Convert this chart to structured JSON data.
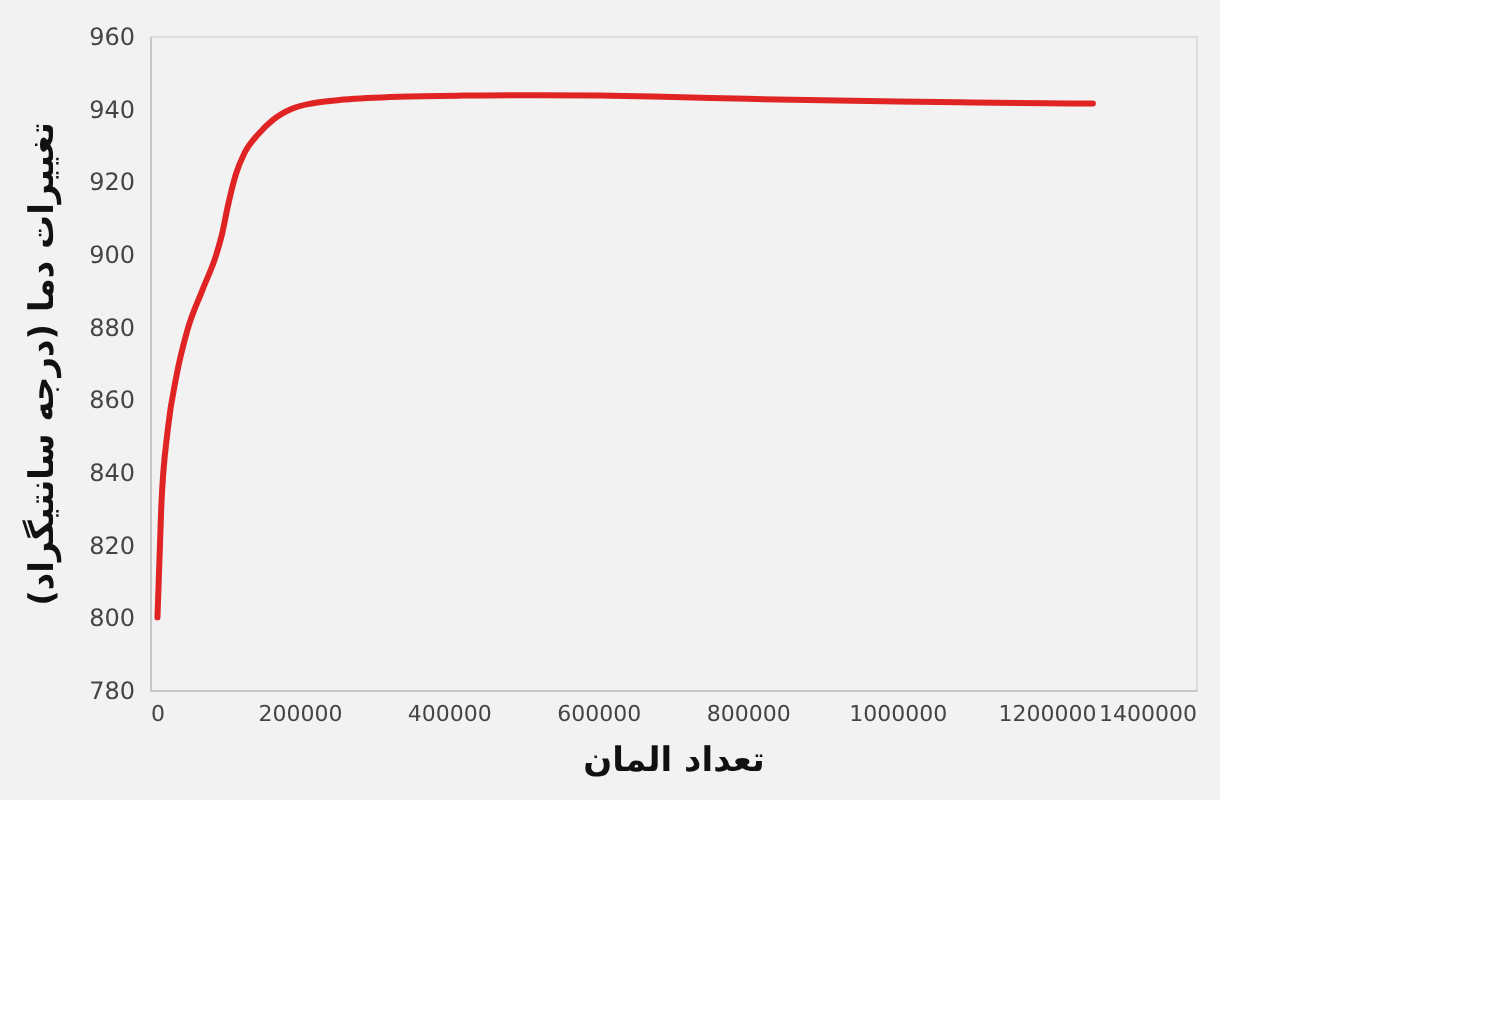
{
  "chart_data": {
    "type": "line",
    "xlabel": "تعداد المان",
    "ylabel": "تغییرات دما (درجه سانتیگراد)",
    "x": [
      10000,
      15000,
      24000,
      35000,
      50000,
      70000,
      89000,
      97000,
      104000,
      115000,
      127000,
      145000,
      165000,
      190000,
      218000,
      260000,
      333000,
      420000,
      520000,
      600000,
      700000,
      800000,
      900000,
      1000000,
      1100000,
      1200000,
      1262000
    ],
    "series": [
      {
        "color": "#e02424",
        "values": [
          800,
          830,
          852,
          866,
          879,
          890,
          900,
          906,
          913,
          922,
          928,
          933,
          937,
          940,
          941.5,
          942.5,
          943.3,
          943.6,
          943.7,
          943.6,
          943.2,
          942.7,
          942.3,
          942,
          941.7,
          941.5,
          941.4
        ]
      }
    ],
    "xlim": [
      0,
      1400000
    ],
    "xticks": [
      0,
      200000,
      400000,
      600000,
      800000,
      1000000,
      1200000,
      1400000
    ],
    "ylim": [
      780,
      960
    ],
    "yticks": [
      780,
      800,
      820,
      840,
      860,
      880,
      900,
      920,
      940,
      960
    ],
    "grid": false,
    "legend": false,
    "marker": "none",
    "line_style": "solid"
  }
}
